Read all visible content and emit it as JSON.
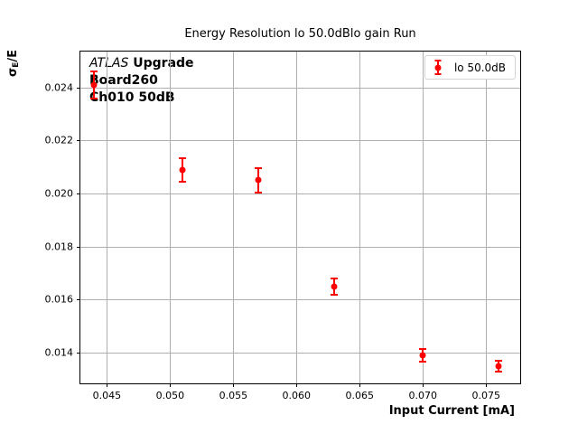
{
  "title": "Energy Resolution lo 50.0dBlo gain Run",
  "axes": {
    "xlabel": "Input Current [mA]",
    "ylabel_sigma": "σ",
    "ylabel_sub": "E",
    "ylabel_rest": "/E"
  },
  "annotation": {
    "line1_italic": "ATLAS",
    "line1_bold": " Upgrade",
    "line2": "Board260",
    "line3": "Ch010 50dB"
  },
  "legend": {
    "label": "lo 50.0dB",
    "marker_icon": "red-errorbar-point-icon"
  },
  "colors": {
    "series": "#ff0000",
    "grid": "#b0b0b0",
    "axis": "#000000",
    "legend_border": "#d4d4d4",
    "background": "#ffffff"
  },
  "chart_data": {
    "type": "scatter",
    "title": "Energy Resolution lo 50.0dBlo gain Run",
    "xlabel": "Input Current [mA]",
    "ylabel": "σE/E",
    "xlim": [
      0.0429,
      0.0777
    ],
    "ylim": [
      0.01284,
      0.02536
    ],
    "x_ticks": [
      0.045,
      0.05,
      0.055,
      0.06,
      0.065,
      0.07,
      0.075
    ],
    "x_tick_labels": [
      "0.045",
      "0.050",
      "0.055",
      "0.060",
      "0.065",
      "0.070",
      "0.075"
    ],
    "y_ticks": [
      0.014,
      0.016,
      0.018,
      0.02,
      0.022,
      0.024
    ],
    "y_tick_labels": [
      "0.014",
      "0.016",
      "0.018",
      "0.020",
      "0.022",
      "0.024"
    ],
    "grid": true,
    "legend_position": "upper right",
    "series": [
      {
        "name": "lo 50.0dB",
        "color": "#ff0000",
        "marker": "o",
        "x": [
          0.044,
          0.051,
          0.057,
          0.063,
          0.07,
          0.076
        ],
        "y": [
          0.0241,
          0.0209,
          0.0205,
          0.0165,
          0.0139,
          0.0135
        ],
        "yerr": [
          0.0005,
          0.00045,
          0.00045,
          0.0003,
          0.00025,
          0.0002
        ]
      }
    ]
  }
}
